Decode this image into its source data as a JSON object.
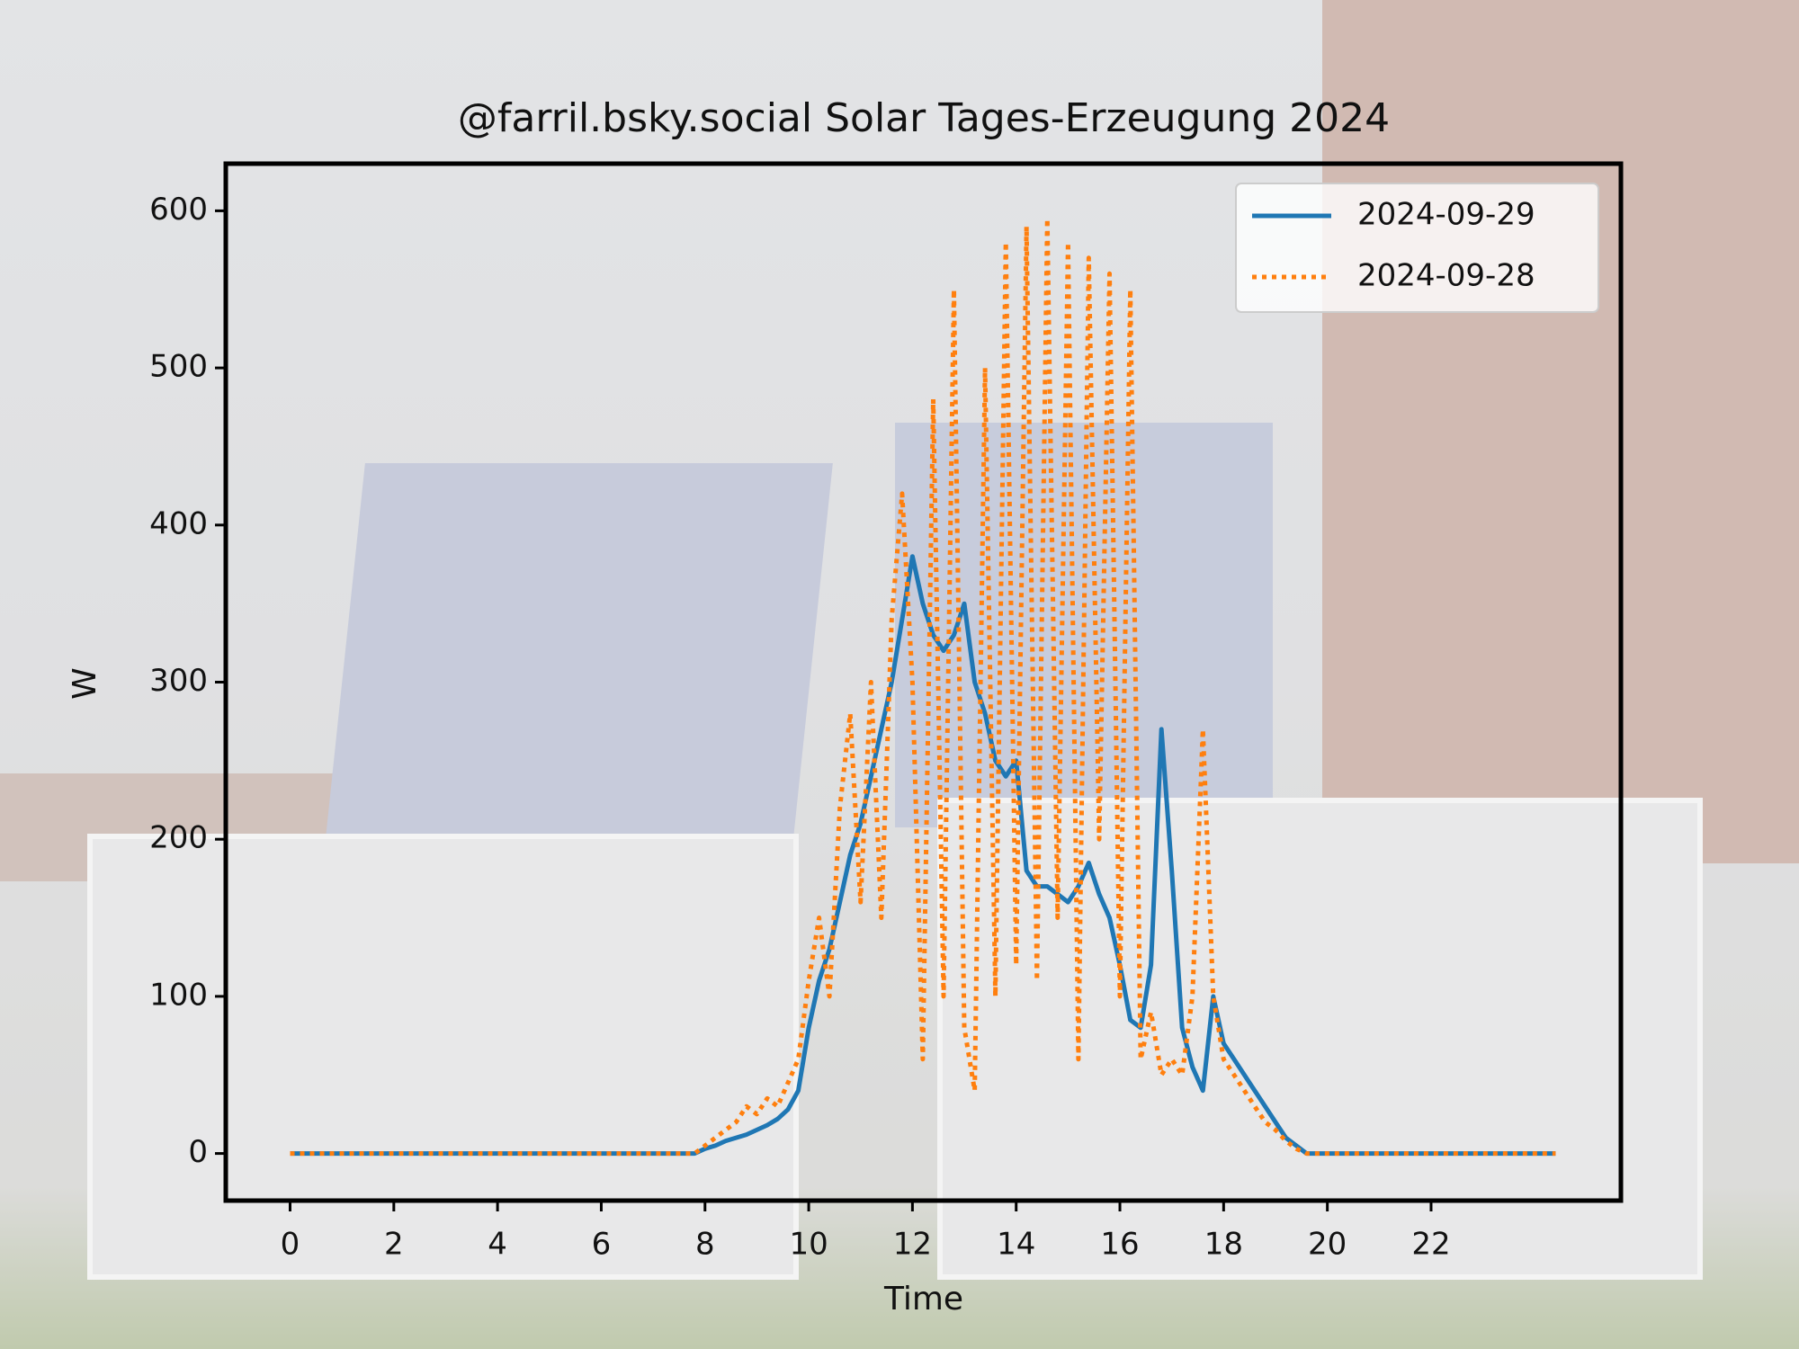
{
  "chart_data": {
    "type": "line",
    "title": "@farril.bsky.social Solar Tages-Erzeugung 2024",
    "x_label": "Time",
    "y_label": "W",
    "x": [
      0,
      7.8,
      8.0,
      8.2,
      8.4,
      8.6,
      8.8,
      9.0,
      9.2,
      9.4,
      9.6,
      9.8,
      10.0,
      10.2,
      10.4,
      10.6,
      10.8,
      11.0,
      11.2,
      11.4,
      11.6,
      11.8,
      12.0,
      12.2,
      12.4,
      12.6,
      12.8,
      13.0,
      13.2,
      13.4,
      13.6,
      13.8,
      14.0,
      14.2,
      14.4,
      14.6,
      14.8,
      15.0,
      15.2,
      15.4,
      15.6,
      15.8,
      16.0,
      16.2,
      16.4,
      16.6,
      16.8,
      17.0,
      17.2,
      17.4,
      17.6,
      17.8,
      18.0,
      18.2,
      18.4,
      18.6,
      18.8,
      19.0,
      19.2,
      19.4,
      19.6,
      24.4
    ],
    "series": [
      {
        "name": "2024-09-29",
        "color": "#1f77b4",
        "style": "solid",
        "values": [
          0,
          0,
          3,
          5,
          8,
          10,
          12,
          15,
          18,
          22,
          28,
          40,
          80,
          110,
          130,
          160,
          190,
          210,
          240,
          270,
          300,
          340,
          380,
          350,
          330,
          320,
          330,
          350,
          300,
          280,
          250,
          240,
          250,
          180,
          170,
          170,
          165,
          160,
          170,
          185,
          165,
          150,
          120,
          85,
          80,
          120,
          270,
          180,
          80,
          55,
          40,
          100,
          70,
          60,
          50,
          40,
          30,
          20,
          10,
          5,
          0,
          0
        ]
      },
      {
        "name": "2024-09-28",
        "color": "#ff7f0e",
        "style": "dotted",
        "values": [
          0,
          0,
          5,
          10,
          15,
          20,
          30,
          25,
          35,
          30,
          45,
          60,
          110,
          150,
          100,
          220,
          280,
          160,
          300,
          150,
          340,
          420,
          300,
          60,
          480,
          100,
          550,
          80,
          40,
          500,
          100,
          580,
          120,
          590,
          110,
          595,
          150,
          580,
          60,
          570,
          200,
          560,
          100,
          550,
          60,
          90,
          50,
          60,
          50,
          100,
          270,
          100,
          60,
          50,
          40,
          30,
          20,
          15,
          8,
          3,
          0,
          0
        ]
      }
    ],
    "xlim": [
      -1.24,
      25.66
    ],
    "ylim": [
      -30,
      630
    ],
    "xticks": [
      0,
      2,
      4,
      6,
      8,
      10,
      12,
      14,
      16,
      18,
      20,
      22
    ],
    "yticks": [
      0,
      100,
      200,
      300,
      400,
      500,
      600
    ],
    "legend": "upper right"
  }
}
